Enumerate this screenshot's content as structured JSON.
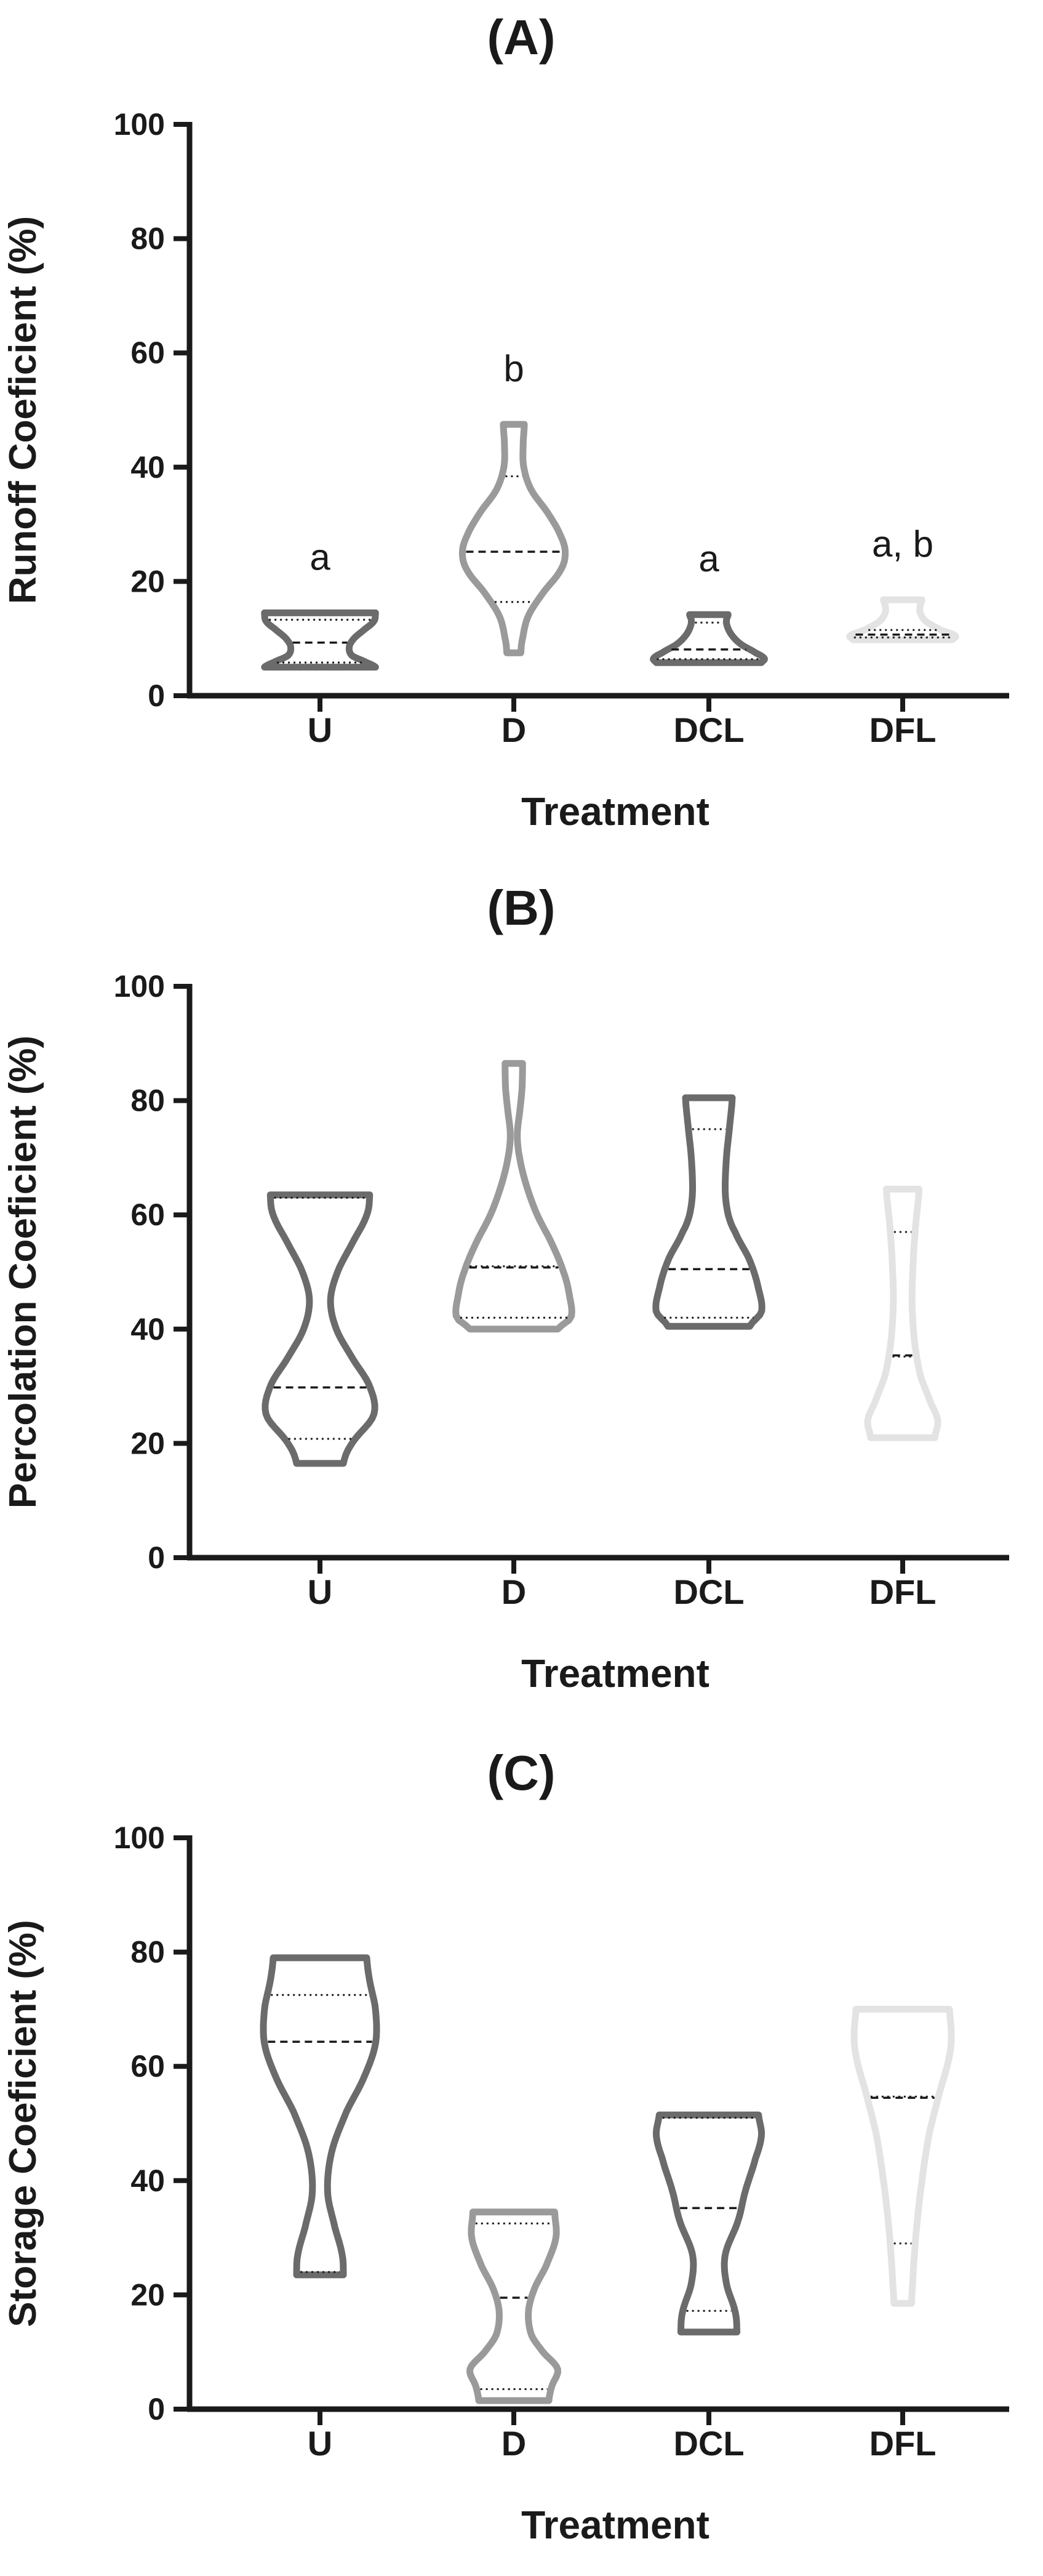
{
  "chart_data": [
    {
      "type": "violin",
      "title": "(A)",
      "xlabel": "Treatment",
      "ylabel": "Runoff Coeficient (%)",
      "ylim": [
        0,
        100
      ],
      "yticks": [
        0,
        20,
        40,
        60,
        80,
        100
      ],
      "categories": [
        "U",
        "D",
        "DCL",
        "DFL"
      ],
      "groups": [
        {
          "name": "U",
          "color": "#6b6b6b",
          "min": 5,
          "max": 14.5,
          "q1": 5.8,
          "median": 9.3,
          "q3": 13.3,
          "letter": "a",
          "profile": [
            [
              5,
              0.95
            ],
            [
              5.8,
              0.8
            ],
            [
              7,
              0.55
            ],
            [
              8.5,
              0.5
            ],
            [
              10,
              0.58
            ],
            [
              11.5,
              0.75
            ],
            [
              13,
              0.92
            ],
            [
              14.5,
              0.95
            ]
          ]
        },
        {
          "name": "D",
          "color": "#9a9a9a",
          "min": 7.5,
          "max": 47.5,
          "q1": 16.4,
          "median": 25.2,
          "q3": 38.4,
          "letter": "b",
          "profile": [
            [
              7.5,
              0.12
            ],
            [
              10,
              0.15
            ],
            [
              14,
              0.25
            ],
            [
              18,
              0.5
            ],
            [
              22,
              0.8
            ],
            [
              25,
              0.88
            ],
            [
              28,
              0.8
            ],
            [
              32,
              0.58
            ],
            [
              36,
              0.3
            ],
            [
              40,
              0.17
            ],
            [
              44,
              0.16
            ],
            [
              47.5,
              0.18
            ]
          ]
        },
        {
          "name": "DCL",
          "color": "#6b6b6b",
          "min": 5.8,
          "max": 14.2,
          "q1": 6.4,
          "median": 8.1,
          "q3": 12.8,
          "letter": "a",
          "profile": [
            [
              5.8,
              0.9
            ],
            [
              6.5,
              0.95
            ],
            [
              7.5,
              0.8
            ],
            [
              9,
              0.55
            ],
            [
              10.5,
              0.4
            ],
            [
              12,
              0.32
            ],
            [
              13.2,
              0.3
            ],
            [
              14.2,
              0.33
            ]
          ]
        },
        {
          "name": "DFL",
          "color": "#e3e3e3",
          "min": 9.8,
          "max": 16.8,
          "q1": 10.2,
          "median": 10.7,
          "q3": 11.5,
          "letter": "a, b",
          "profile": [
            [
              9.8,
              0.85
            ],
            [
              10.5,
              0.9
            ],
            [
              11.5,
              0.65
            ],
            [
              13,
              0.4
            ],
            [
              14.5,
              0.3
            ],
            [
              15.8,
              0.3
            ],
            [
              16.8,
              0.33
            ]
          ]
        }
      ]
    },
    {
      "type": "violin",
      "title": "(B)",
      "xlabel": "Treatment",
      "ylabel": "Percolation Coeficient (%)",
      "ylim": [
        0,
        100
      ],
      "yticks": [
        0,
        20,
        40,
        60,
        80,
        100
      ],
      "categories": [
        "U",
        "D",
        "DCL",
        "DFL"
      ],
      "groups": [
        {
          "name": "U",
          "color": "#6b6b6b",
          "min": 16.5,
          "max": 63.5,
          "q1": 20.8,
          "median": 29.8,
          "q3": 63,
          "letter": "",
          "profile": [
            [
              16.5,
              0.4
            ],
            [
              20,
              0.55
            ],
            [
              25,
              0.92
            ],
            [
              30,
              0.85
            ],
            [
              35,
              0.55
            ],
            [
              40,
              0.28
            ],
            [
              45,
              0.18
            ],
            [
              50,
              0.3
            ],
            [
              55,
              0.55
            ],
            [
              60,
              0.8
            ],
            [
              63.5,
              0.85
            ]
          ]
        },
        {
          "name": "D",
          "color": "#9a9a9a",
          "min": 40,
          "max": 86.5,
          "q1": 42,
          "median": 50.8,
          "q3": 51,
          "letter": "",
          "profile": [
            [
              40,
              0.75
            ],
            [
              42,
              0.98
            ],
            [
              46,
              0.95
            ],
            [
              50,
              0.85
            ],
            [
              55,
              0.65
            ],
            [
              60,
              0.4
            ],
            [
              65,
              0.22
            ],
            [
              70,
              0.1
            ],
            [
              74,
              0.06
            ],
            [
              78,
              0.1
            ],
            [
              82,
              0.14
            ],
            [
              86.5,
              0.15
            ]
          ]
        },
        {
          "name": "DCL",
          "color": "#6b6b6b",
          "min": 40.5,
          "max": 80.5,
          "q1": 42,
          "median": 50.5,
          "q3": 75,
          "letter": "",
          "profile": [
            [
              40.5,
              0.7
            ],
            [
              43,
              0.9
            ],
            [
              47,
              0.85
            ],
            [
              52,
              0.7
            ],
            [
              57,
              0.45
            ],
            [
              60,
              0.33
            ],
            [
              64,
              0.28
            ],
            [
              70,
              0.3
            ],
            [
              75,
              0.35
            ],
            [
              80.5,
              0.4
            ]
          ]
        },
        {
          "name": "DFL",
          "color": "#e3e3e3",
          "min": 21,
          "max": 64.5,
          "q1": 35.2,
          "median": 35.4,
          "q3": 57,
          "letter": "",
          "profile": [
            [
              21,
              0.55
            ],
            [
              24,
              0.6
            ],
            [
              27,
              0.48
            ],
            [
              32,
              0.3
            ],
            [
              38,
              0.2
            ],
            [
              45,
              0.16
            ],
            [
              52,
              0.18
            ],
            [
              58,
              0.22
            ],
            [
              64.5,
              0.28
            ]
          ]
        }
      ]
    },
    {
      "type": "violin",
      "title": "(C)",
      "xlabel": "Treatment",
      "ylabel": "Storage Coeficient (%)",
      "ylim": [
        0,
        100
      ],
      "yticks": [
        0,
        20,
        40,
        60,
        80,
        100
      ],
      "categories": [
        "U",
        "D",
        "DCL",
        "DFL"
      ],
      "groups": [
        {
          "name": "U",
          "color": "#6b6b6b",
          "min": 23.5,
          "max": 79,
          "q1": 24,
          "median": 64.3,
          "q3": 72.5,
          "letter": "",
          "profile": [
            [
              23.5,
              0.4
            ],
            [
              27,
              0.38
            ],
            [
              32,
              0.25
            ],
            [
              38,
              0.13
            ],
            [
              45,
              0.2
            ],
            [
              52,
              0.45
            ],
            [
              58,
              0.75
            ],
            [
              64,
              0.95
            ],
            [
              70,
              0.95
            ],
            [
              75,
              0.85
            ],
            [
              79,
              0.8
            ]
          ]
        },
        {
          "name": "D",
          "color": "#9a9a9a",
          "min": 1.5,
          "max": 34.5,
          "q1": 3.5,
          "median": 19.5,
          "q3": 32.5,
          "letter": "",
          "profile": [
            [
              1.5,
              0.6
            ],
            [
              4,
              0.65
            ],
            [
              7,
              0.75
            ],
            [
              10,
              0.5
            ],
            [
              13,
              0.3
            ],
            [
              17,
              0.25
            ],
            [
              21,
              0.35
            ],
            [
              25,
              0.55
            ],
            [
              30,
              0.72
            ],
            [
              34.5,
              0.7
            ]
          ]
        },
        {
          "name": "DCL",
          "color": "#6b6b6b",
          "min": 13.5,
          "max": 51.5,
          "q1": 17.2,
          "median": 35.2,
          "q3": 51,
          "letter": "",
          "profile": [
            [
              13.5,
              0.48
            ],
            [
              17,
              0.45
            ],
            [
              22,
              0.3
            ],
            [
              27,
              0.28
            ],
            [
              33,
              0.5
            ],
            [
              38,
              0.62
            ],
            [
              44,
              0.8
            ],
            [
              48,
              0.9
            ],
            [
              51.5,
              0.85
            ]
          ]
        },
        {
          "name": "DFL",
          "color": "#e3e3e3",
          "min": 18.5,
          "max": 70,
          "q1": 29,
          "median": 54.5,
          "q3": 54.7,
          "letter": "",
          "profile": [
            [
              18.5,
              0.15
            ],
            [
              22,
              0.17
            ],
            [
              27,
              0.2
            ],
            [
              33,
              0.25
            ],
            [
              40,
              0.33
            ],
            [
              48,
              0.45
            ],
            [
              55,
              0.62
            ],
            [
              62,
              0.8
            ],
            [
              66,
              0.83
            ],
            [
              70,
              0.8
            ]
          ]
        }
      ]
    }
  ]
}
